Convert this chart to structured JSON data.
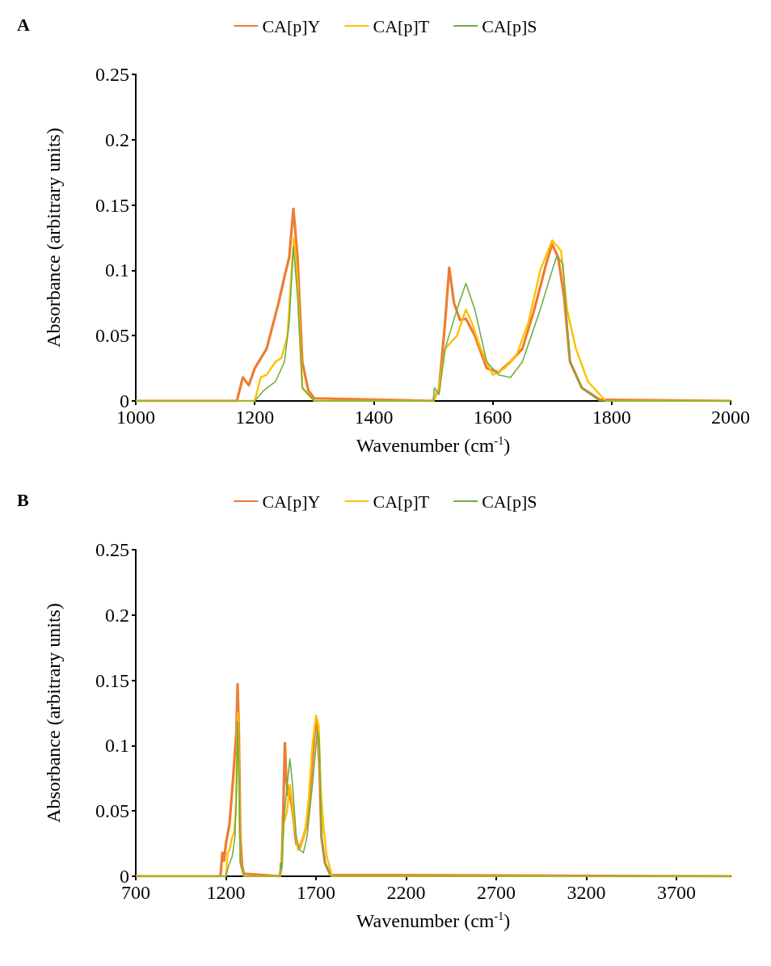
{
  "chart_data": [
    {
      "type": "line",
      "title": "A",
      "xlabel": "Wavenumber (cm$^{-1}$)",
      "ylabel": "Absorbance (arbitrary units)",
      "xlim": [
        1000,
        2000
      ],
      "xticks": [
        1000,
        1200,
        1400,
        1600,
        1800,
        2000
      ],
      "ylim": [
        0,
        0.25
      ],
      "yticks": [
        0,
        0.05,
        0.1,
        0.15,
        0.2,
        0.25
      ],
      "grid": false,
      "legend": "top",
      "marker": "none",
      "line_style": "solid",
      "series": [
        {
          "name": "CA[p]Y",
          "color": "#ed7d31",
          "x": [
            1000,
            1170,
            1180,
            1190,
            1200,
            1220,
            1240,
            1250,
            1258,
            1265,
            1272,
            1280,
            1290,
            1300,
            1400,
            1500,
            1510,
            1520,
            1527,
            1535,
            1545,
            1555,
            1570,
            1590,
            1610,
            1630,
            1650,
            1670,
            1690,
            1700,
            1710,
            1720,
            1730,
            1750,
            1780,
            2000
          ],
          "values": [
            0,
            0,
            0.018,
            0.012,
            0.025,
            0.04,
            0.075,
            0.095,
            0.11,
            0.147,
            0.11,
            0.03,
            0.008,
            0.002,
            0.001,
            0,
            0.01,
            0.06,
            0.102,
            0.075,
            0.062,
            0.063,
            0.05,
            0.025,
            0.022,
            0.03,
            0.04,
            0.07,
            0.105,
            0.12,
            0.11,
            0.08,
            0.03,
            0.01,
            0.001,
            0
          ]
        },
        {
          "name": "CA[p]T",
          "color": "#ffc000",
          "x": [
            1000,
            1200,
            1210,
            1220,
            1235,
            1245,
            1255,
            1262,
            1266,
            1272,
            1280,
            1300,
            1500,
            1510,
            1520,
            1540,
            1555,
            1565,
            1580,
            1600,
            1620,
            1640,
            1660,
            1680,
            1700,
            1715,
            1725,
            1740,
            1760,
            1790,
            2000
          ],
          "values": [
            0,
            0,
            0.018,
            0.02,
            0.03,
            0.033,
            0.05,
            0.1,
            0.125,
            0.09,
            0.01,
            0,
            0,
            0.01,
            0.04,
            0.05,
            0.07,
            0.06,
            0.04,
            0.02,
            0.025,
            0.035,
            0.06,
            0.1,
            0.123,
            0.115,
            0.07,
            0.04,
            0.015,
            0,
            0
          ]
        },
        {
          "name": "CA[p]S",
          "color": "#70ad47",
          "x": [
            1000,
            1200,
            1215,
            1235,
            1250,
            1258,
            1265,
            1272,
            1280,
            1300,
            1500,
            1502,
            1510,
            1520,
            1540,
            1555,
            1570,
            1590,
            1610,
            1630,
            1650,
            1680,
            1700,
            1708,
            1718,
            1730,
            1750,
            1780,
            2000
          ],
          "values": [
            0,
            0,
            0.008,
            0.015,
            0.03,
            0.06,
            0.118,
            0.08,
            0.01,
            0,
            0,
            0.01,
            0.005,
            0.04,
            0.07,
            0.09,
            0.07,
            0.03,
            0.02,
            0.018,
            0.03,
            0.07,
            0.1,
            0.111,
            0.105,
            0.03,
            0.01,
            0,
            0
          ]
        }
      ]
    },
    {
      "type": "line",
      "title": "B",
      "xlabel": "Wavenumber (cm$^{-1}$)",
      "ylabel": "Absorbance (arbitrary units)",
      "xlim": [
        700,
        4000
      ],
      "xticks": [
        700,
        1200,
        1700,
        2200,
        2700,
        3200,
        3700
      ],
      "ylim": [
        0,
        0.25
      ],
      "yticks": [
        0,
        0.05,
        0.1,
        0.15,
        0.2,
        0.25
      ],
      "grid": false,
      "legend": "top",
      "marker": "none",
      "line_style": "solid",
      "series": [
        {
          "name": "CA[p]Y",
          "color": "#ed7d31",
          "x": [
            700,
            1170,
            1180,
            1190,
            1200,
            1220,
            1240,
            1250,
            1258,
            1265,
            1272,
            1280,
            1290,
            1300,
            1400,
            1500,
            1510,
            1520,
            1527,
            1535,
            1545,
            1555,
            1570,
            1590,
            1610,
            1630,
            1650,
            1670,
            1690,
            1700,
            1710,
            1720,
            1730,
            1750,
            1780,
            4000
          ],
          "values": [
            0,
            0,
            0.018,
            0.012,
            0.025,
            0.04,
            0.075,
            0.095,
            0.11,
            0.147,
            0.11,
            0.03,
            0.008,
            0.002,
            0.001,
            0,
            0.01,
            0.06,
            0.102,
            0.075,
            0.062,
            0.063,
            0.05,
            0.025,
            0.022,
            0.03,
            0.04,
            0.07,
            0.105,
            0.12,
            0.11,
            0.08,
            0.03,
            0.01,
            0.001,
            0
          ]
        },
        {
          "name": "CA[p]T",
          "color": "#ffc000",
          "x": [
            700,
            1200,
            1210,
            1220,
            1235,
            1245,
            1255,
            1262,
            1266,
            1272,
            1280,
            1300,
            1500,
            1510,
            1520,
            1540,
            1555,
            1565,
            1580,
            1600,
            1620,
            1640,
            1660,
            1680,
            1700,
            1715,
            1725,
            1740,
            1760,
            1790,
            4000
          ],
          "values": [
            0,
            0,
            0.018,
            0.02,
            0.03,
            0.033,
            0.05,
            0.1,
            0.125,
            0.09,
            0.01,
            0,
            0,
            0.01,
            0.04,
            0.05,
            0.07,
            0.06,
            0.04,
            0.02,
            0.025,
            0.035,
            0.06,
            0.1,
            0.123,
            0.115,
            0.07,
            0.04,
            0.015,
            0,
            0
          ]
        },
        {
          "name": "CA[p]S",
          "color": "#70ad47",
          "x": [
            700,
            1200,
            1215,
            1235,
            1250,
            1258,
            1265,
            1272,
            1280,
            1300,
            1500,
            1502,
            1510,
            1520,
            1540,
            1555,
            1570,
            1590,
            1610,
            1630,
            1650,
            1680,
            1700,
            1708,
            1718,
            1730,
            1750,
            1780,
            4000
          ],
          "values": [
            0,
            0,
            0.008,
            0.015,
            0.03,
            0.06,
            0.118,
            0.08,
            0.01,
            0,
            0,
            0.01,
            0.005,
            0.04,
            0.07,
            0.09,
            0.07,
            0.03,
            0.02,
            0.018,
            0.03,
            0.07,
            0.1,
            0.111,
            0.105,
            0.03,
            0.01,
            0,
            0
          ]
        }
      ]
    }
  ]
}
